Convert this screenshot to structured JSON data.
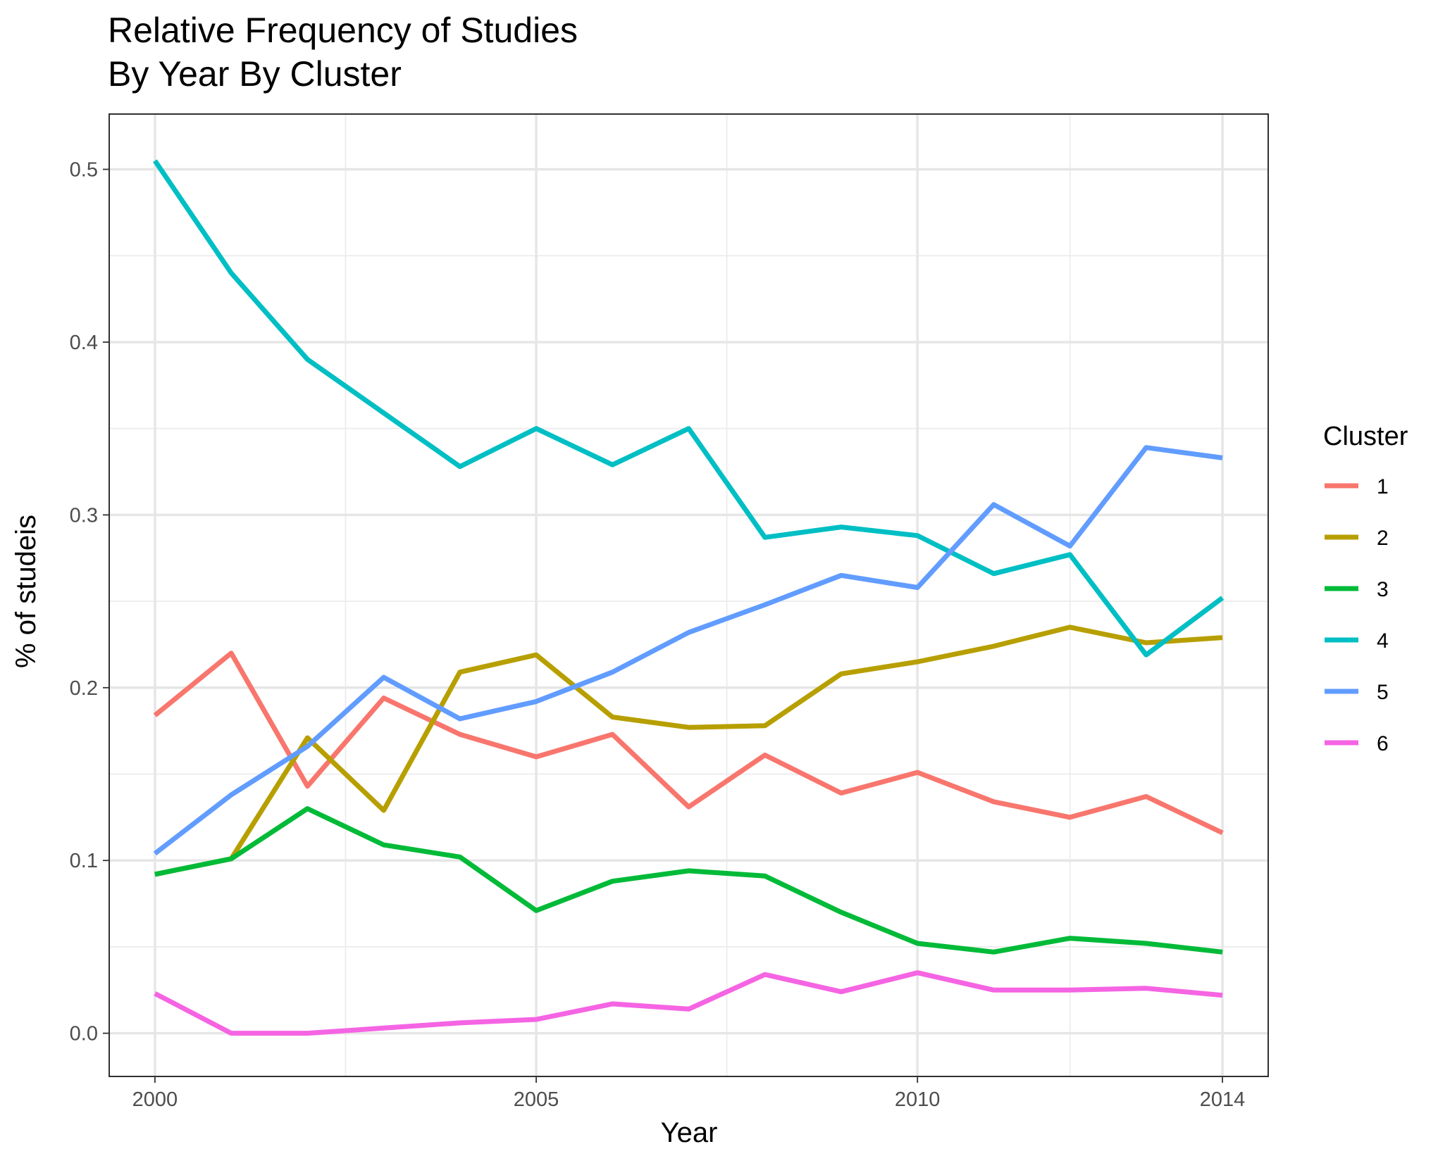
{
  "chart_data": {
    "type": "line",
    "title": "Relative Frequency of Studies",
    "subtitle": "By Year By Cluster",
    "xlabel": "Year",
    "ylabel": "% of studeis",
    "xlim": [
      1999.4,
      2014.6
    ],
    "ylim": [
      -0.025,
      0.532
    ],
    "x_ticks": [
      2000,
      2005,
      2010,
      2014
    ],
    "x_tick_labels": [
      "2000",
      "2005",
      "2010",
      "2014"
    ],
    "x_minor_ticks": [
      2002.5,
      2007.5,
      2012
    ],
    "y_ticks": [
      0.0,
      0.1,
      0.2,
      0.3,
      0.4,
      0.5
    ],
    "y_tick_labels": [
      "0.0",
      "0.1",
      "0.2",
      "0.3",
      "0.4",
      "0.5"
    ],
    "y_minor_ticks": [
      0.05,
      0.15,
      0.25,
      0.35,
      0.45
    ],
    "grid": true,
    "legend": {
      "title": "Cluster",
      "position": "right"
    },
    "x": [
      2000,
      2001,
      2002,
      2003,
      2004,
      2005,
      2006,
      2007,
      2008,
      2009,
      2010,
      2011,
      2012,
      2013,
      2014
    ],
    "series": [
      {
        "name": "1",
        "color": "#F8766D",
        "values": [
          0.184,
          0.22,
          0.143,
          0.194,
          0.173,
          0.16,
          0.173,
          0.131,
          0.161,
          0.139,
          0.151,
          0.134,
          0.125,
          0.137,
          0.116
        ]
      },
      {
        "name": "2",
        "color": "#B79F00",
        "values": [
          0.092,
          0.101,
          0.171,
          0.129,
          0.209,
          0.219,
          0.183,
          0.177,
          0.178,
          0.208,
          0.215,
          0.224,
          0.235,
          0.226,
          0.229
        ]
      },
      {
        "name": "3",
        "color": "#00BA38",
        "values": [
          0.092,
          0.101,
          0.13,
          0.109,
          0.102,
          0.071,
          0.088,
          0.094,
          0.091,
          0.07,
          0.052,
          0.047,
          0.055,
          0.052,
          0.047
        ]
      },
      {
        "name": "4",
        "color": "#00BFC4",
        "values": [
          0.505,
          0.44,
          0.39,
          0.359,
          0.328,
          0.35,
          0.329,
          0.35,
          0.287,
          0.293,
          0.288,
          0.266,
          0.277,
          0.219,
          0.252
        ]
      },
      {
        "name": "5",
        "color": "#619CFF",
        "values": [
          0.104,
          0.138,
          0.166,
          0.206,
          0.182,
          0.192,
          0.209,
          0.232,
          0.248,
          0.265,
          0.258,
          0.306,
          0.282,
          0.339,
          0.333
        ]
      },
      {
        "name": "6",
        "color": "#F564E3",
        "values": [
          0.023,
          0.0,
          0.0,
          0.003,
          0.006,
          0.008,
          0.017,
          0.014,
          0.034,
          0.024,
          0.035,
          0.025,
          0.025,
          0.026,
          0.022
        ]
      }
    ]
  }
}
